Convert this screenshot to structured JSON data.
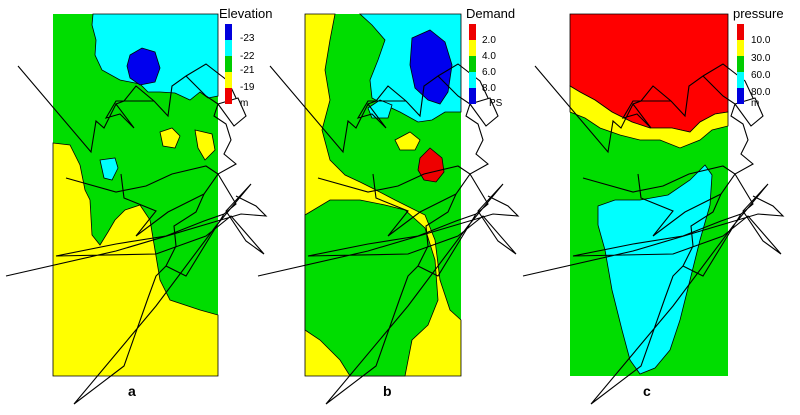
{
  "panels": [
    {
      "letter": "a",
      "legend_title": "Elevation",
      "legend_labels": [
        "-23",
        "-22",
        "-21",
        "-19"
      ],
      "legend_unit": "m",
      "legend_colors": [
        "#0000dd",
        "#00ffff",
        "#00cc00",
        "#ffff00",
        "#ee0000"
      ]
    },
    {
      "letter": "b",
      "legend_title": "Demand",
      "legend_labels": [
        "2.0",
        "4.0",
        "6.0",
        "8.0"
      ],
      "legend_unit": "PS",
      "legend_colors": [
        "#ee0000",
        "#ffff00",
        "#00cc00",
        "#00ffff",
        "#0000dd"
      ]
    },
    {
      "letter": "c",
      "legend_title": "pressure",
      "legend_labels": [
        "10.0",
        "30.0",
        "60.0",
        "80.0"
      ],
      "legend_unit": "m",
      "legend_colors": [
        "#ee0000",
        "#ffff00",
        "#00cc00",
        "#00ffff",
        "#0000dd"
      ]
    }
  ],
  "colors": {
    "red": "#ff0000",
    "yellow": "#ffff00",
    "green": "#00dd00",
    "cyan": "#00ffff",
    "blue": "#0000ee",
    "network": "#000000"
  }
}
